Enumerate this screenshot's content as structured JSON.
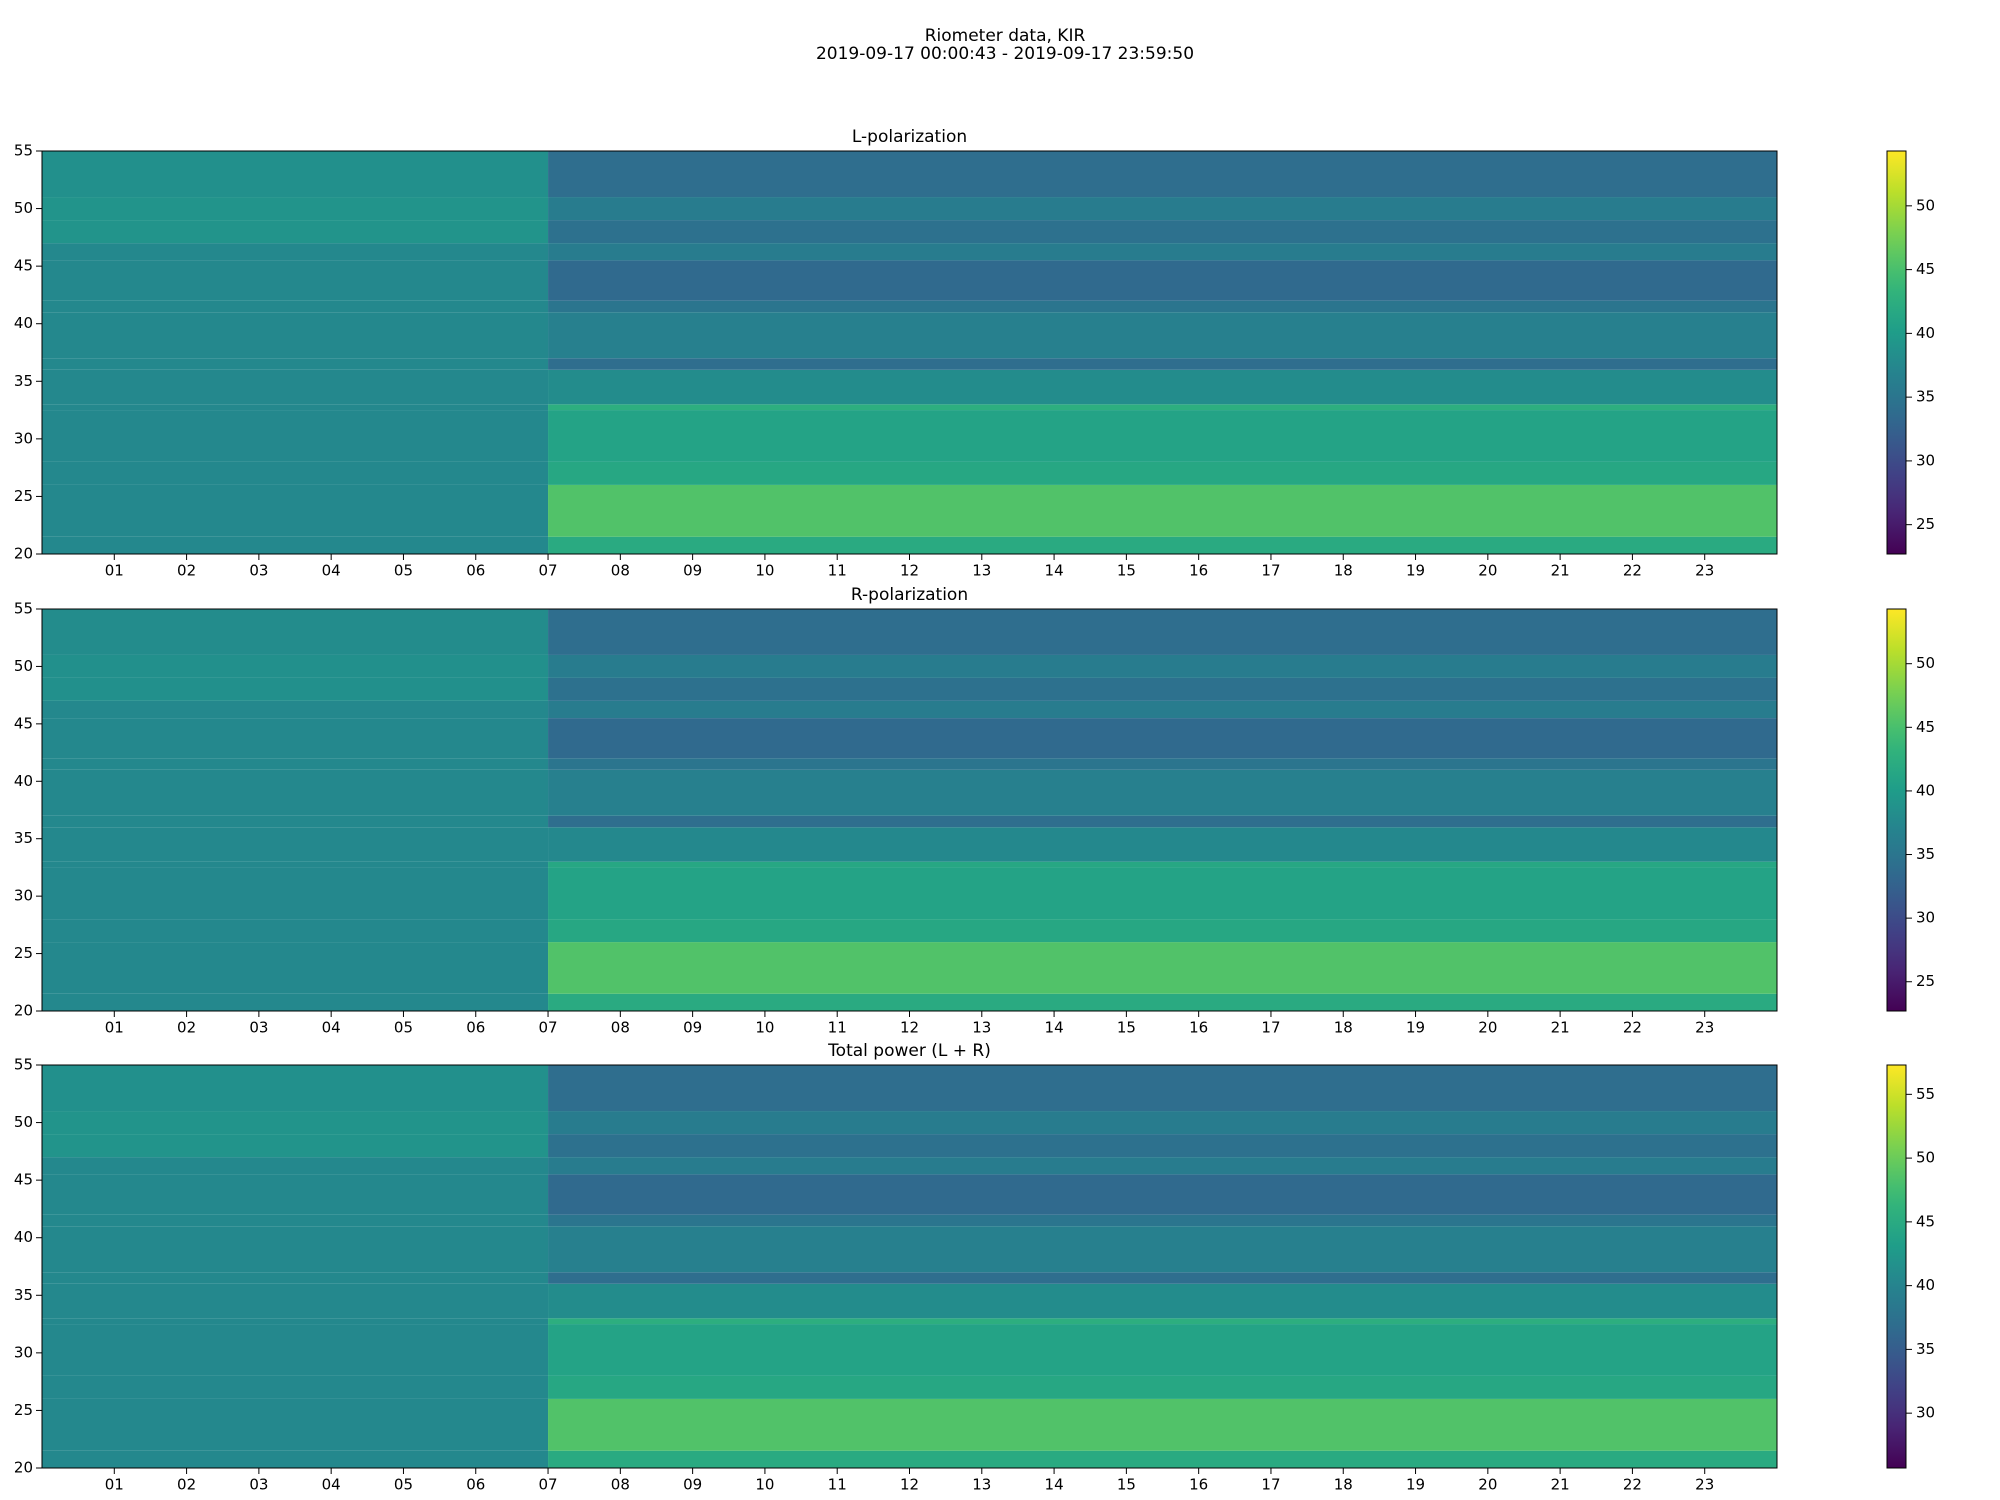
{
  "figure": {
    "title": "Riometer data, KIR",
    "subtitle": "2019-09-17 00:00:43 - 2019-09-17 23:59:50"
  },
  "chart_data": [
    {
      "type": "heatmap",
      "title": "L-polarization",
      "colormap": "viridis",
      "x": [
        0,
        7,
        24
      ],
      "y": [
        20,
        21.5,
        26,
        28,
        32.5,
        33,
        36,
        37,
        41,
        42,
        45.5,
        47,
        49,
        51,
        55
      ],
      "values": [
        [
          37.5,
          42
        ],
        [
          37.5,
          45.5
        ],
        [
          37.5,
          41.5
        ],
        [
          37.5,
          41
        ],
        [
          37.5,
          42.5
        ],
        [
          37.5,
          38
        ],
        [
          37.5,
          34
        ],
        [
          37.5,
          36.5
        ],
        [
          37.5,
          35
        ],
        [
          37.5,
          33.5
        ],
        [
          37.5,
          36
        ],
        [
          39,
          34.5
        ],
        [
          39,
          36
        ],
        [
          38.5,
          34
        ]
      ],
      "xlim": [
        0,
        24
      ],
      "ylim": [
        20,
        55
      ],
      "xticks": [
        {
          "value": 1,
          "label": "01"
        },
        {
          "value": 2,
          "label": "02"
        },
        {
          "value": 3,
          "label": "03"
        },
        {
          "value": 4,
          "label": "04"
        },
        {
          "value": 5,
          "label": "05"
        },
        {
          "value": 6,
          "label": "06"
        },
        {
          "value": 7,
          "label": "07"
        },
        {
          "value": 8,
          "label": "08"
        },
        {
          "value": 9,
          "label": "09"
        },
        10,
        11,
        12,
        13,
        14,
        15,
        16,
        17,
        18,
        19,
        20,
        21,
        22,
        23
      ],
      "yticks": [
        20,
        25,
        30,
        35,
        40,
        45,
        50,
        55
      ],
      "clim": [
        22.7,
        54.3
      ],
      "cticks": [
        25,
        30,
        35,
        40,
        45,
        50
      ]
    },
    {
      "type": "heatmap",
      "title": "R-polarization",
      "colormap": "viridis",
      "x": [
        0,
        7,
        24
      ],
      "y": [
        20,
        21.5,
        26,
        28,
        32.5,
        33,
        36,
        37,
        41,
        42,
        45.5,
        47,
        49,
        51,
        55
      ],
      "values": [
        [
          37.5,
          42
        ],
        [
          37.5,
          45.5
        ],
        [
          37.5,
          41.5
        ],
        [
          37.5,
          41
        ],
        [
          37.5,
          41.5
        ],
        [
          37.5,
          37.5
        ],
        [
          37.5,
          34
        ],
        [
          37.5,
          36.5
        ],
        [
          37.5,
          35
        ],
        [
          37.5,
          33.5
        ],
        [
          37.5,
          36
        ],
        [
          38.5,
          34.5
        ],
        [
          38.5,
          36
        ],
        [
          38,
          34
        ]
      ],
      "xlim": [
        0,
        24
      ],
      "ylim": [
        20,
        55
      ],
      "xticks": [
        {
          "value": 1,
          "label": "01"
        },
        {
          "value": 2,
          "label": "02"
        },
        {
          "value": 3,
          "label": "03"
        },
        {
          "value": 4,
          "label": "04"
        },
        {
          "value": 5,
          "label": "05"
        },
        {
          "value": 6,
          "label": "06"
        },
        {
          "value": 7,
          "label": "07"
        },
        {
          "value": 8,
          "label": "08"
        },
        {
          "value": 9,
          "label": "09"
        },
        10,
        11,
        12,
        13,
        14,
        15,
        16,
        17,
        18,
        19,
        20,
        21,
        22,
        23
      ],
      "yticks": [
        20,
        25,
        30,
        35,
        40,
        45,
        50,
        55
      ],
      "clim": [
        22.7,
        54.3
      ],
      "cticks": [
        25,
        30,
        35,
        40,
        45,
        50
      ]
    },
    {
      "type": "heatmap",
      "title": "Total power (L + R)",
      "colormap": "viridis",
      "x": [
        0,
        7,
        24
      ],
      "y": [
        20,
        21.5,
        26,
        28,
        32.5,
        33,
        36,
        37,
        41,
        42,
        45.5,
        47,
        49,
        51,
        55
      ],
      "values": [
        [
          40.5,
          45
        ],
        [
          40.5,
          48.5
        ],
        [
          40.5,
          44.5
        ],
        [
          40.5,
          44
        ],
        [
          40.5,
          45.5
        ],
        [
          40.5,
          41
        ],
        [
          40.5,
          37
        ],
        [
          40.5,
          39.5
        ],
        [
          40.5,
          38
        ],
        [
          40.5,
          36.5
        ],
        [
          40.5,
          39
        ],
        [
          42,
          37.5
        ],
        [
          42,
          39
        ],
        [
          41.5,
          37
        ]
      ],
      "xlim": [
        0,
        24
      ],
      "ylim": [
        20,
        55
      ],
      "xticks": [
        {
          "value": 1,
          "label": "01"
        },
        {
          "value": 2,
          "label": "02"
        },
        {
          "value": 3,
          "label": "03"
        },
        {
          "value": 4,
          "label": "04"
        },
        {
          "value": 5,
          "label": "05"
        },
        {
          "value": 6,
          "label": "06"
        },
        {
          "value": 7,
          "label": "07"
        },
        {
          "value": 8,
          "label": "08"
        },
        {
          "value": 9,
          "label": "09"
        },
        10,
        11,
        12,
        13,
        14,
        15,
        16,
        17,
        18,
        19,
        20,
        21,
        22,
        23
      ],
      "yticks": [
        20,
        25,
        30,
        35,
        40,
        45,
        50,
        55
      ],
      "clim": [
        25.7,
        57.3
      ],
      "cticks": [
        30,
        35,
        40,
        45,
        50,
        55
      ]
    }
  ]
}
